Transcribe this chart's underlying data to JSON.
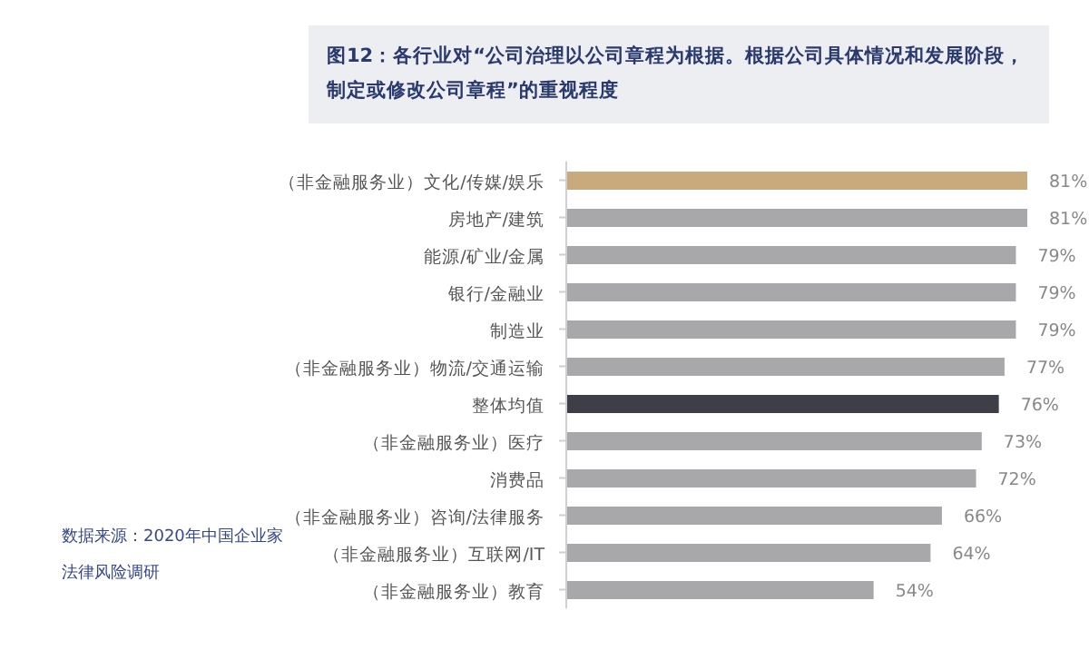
{
  "chart_data": {
    "type": "bar",
    "orientation": "horizontal",
    "title": "图12：各行业对“公司治理以公司章程为根据。根据公司具体情况和发展阶段，制定或修改公司章程”的重视程度",
    "categories": [
      "（非金融服务业）文化/传媒/娱乐",
      "房地产/建筑",
      "能源/矿业/金属",
      "银行/金融业",
      "制造业",
      "（非金融服务业）物流/交通运输",
      "整体均值",
      "（非金融服务业）医疗",
      "消费品",
      "（非金融服务业）咨询/法律服务",
      "（非金融服务业）互联网/IT",
      "（非金融服务业）教育"
    ],
    "values": [
      81,
      81,
      79,
      79,
      79,
      77,
      76,
      73,
      72,
      66,
      64,
      54
    ],
    "colors": [
      "#c9aa7c",
      "#a8a8aa",
      "#a8a8aa",
      "#a8a8aa",
      "#a8a8aa",
      "#a8a8aa",
      "#3e3e48",
      "#a8a8aa",
      "#a8a8aa",
      "#a8a8aa",
      "#a8a8aa",
      "#a8a8aa"
    ],
    "value_labels": [
      "81%",
      "81%",
      "79%",
      "79%",
      "79%",
      "77%",
      "76%",
      "73%",
      "72%",
      "66%",
      "64%",
      "54%"
    ],
    "tick_labels": "y",
    "annotations": [
      "数据来源：2020年中国企业家法律风险调研"
    ]
  }
}
